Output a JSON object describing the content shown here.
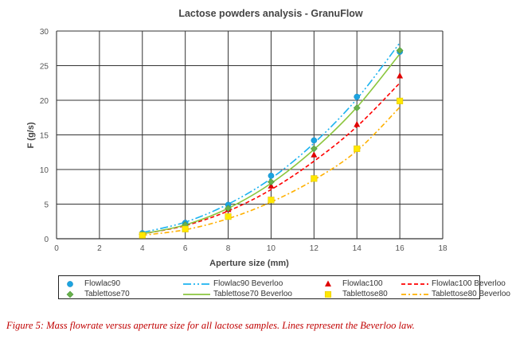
{
  "chart_data": {
    "type": "scatter",
    "title": "Lactose powders analysis - GranuFlow",
    "xlabel": "Aperture size (mm)",
    "ylabel": "F (g/s)",
    "xlim": [
      0,
      18
    ],
    "ylim": [
      0,
      30
    ],
    "xticks": [
      0,
      2,
      4,
      6,
      8,
      10,
      12,
      14,
      16,
      18
    ],
    "yticks": [
      0,
      5,
      10,
      15,
      20,
      25,
      30
    ],
    "grid": true,
    "legend_position": "bottom",
    "x": [
      4,
      6,
      8,
      10,
      12,
      14,
      16
    ],
    "series": [
      {
        "name": "Flowlac90",
        "kind": "points",
        "marker": "circle",
        "color": "#1ca3e0",
        "values": [
          0.8,
          2.3,
          4.9,
          9.1,
          14.2,
          20.5,
          27.0
        ]
      },
      {
        "name": "Flowlac90 Beverloo",
        "kind": "line",
        "dash": "10 3 2 3 2 3",
        "color": "#1cb3f0",
        "values": [
          0.9,
          2.4,
          5.0,
          8.7,
          13.8,
          20.2,
          28.3
        ]
      },
      {
        "name": "Flowlac100",
        "kind": "points",
        "marker": "triangle",
        "color": "#e00000",
        "values": [
          0.6,
          2.0,
          4.2,
          7.6,
          12.1,
          16.5,
          23.5
        ]
      },
      {
        "name": "Flowlac100 Beverloo",
        "kind": "line",
        "dash": "5 3",
        "color": "#ff0000",
        "values": [
          0.7,
          1.9,
          4.0,
          7.1,
          11.2,
          16.2,
          22.5
        ]
      },
      {
        "name": "Tablettose70",
        "kind": "points",
        "marker": "diamond",
        "color": "#6ab04c",
        "values": [
          0.6,
          2.0,
          4.4,
          8.2,
          13.0,
          18.9,
          27.2
        ]
      },
      {
        "name": "Tablettose70 Beverloo",
        "kind": "line",
        "dash": "",
        "color": "#8cc63f",
        "values": [
          0.7,
          2.0,
          4.4,
          8.0,
          12.9,
          19.0,
          26.7
        ]
      },
      {
        "name": "Tablettose80",
        "kind": "points",
        "marker": "square",
        "color": "#ffe800",
        "values": [
          0.5,
          1.4,
          3.2,
          5.6,
          8.7,
          13.0,
          19.9
        ]
      },
      {
        "name": "Tablettose80 Beverloo",
        "kind": "line",
        "dash": "6 3 2 3",
        "color": "#ffb000",
        "values": [
          0.5,
          1.3,
          2.9,
          5.3,
          8.5,
          12.7,
          19.0
        ]
      }
    ]
  },
  "caption": "Figure 5: Mass flowrate versus aperture size for all lactose samples. Lines represent the Beverloo law."
}
